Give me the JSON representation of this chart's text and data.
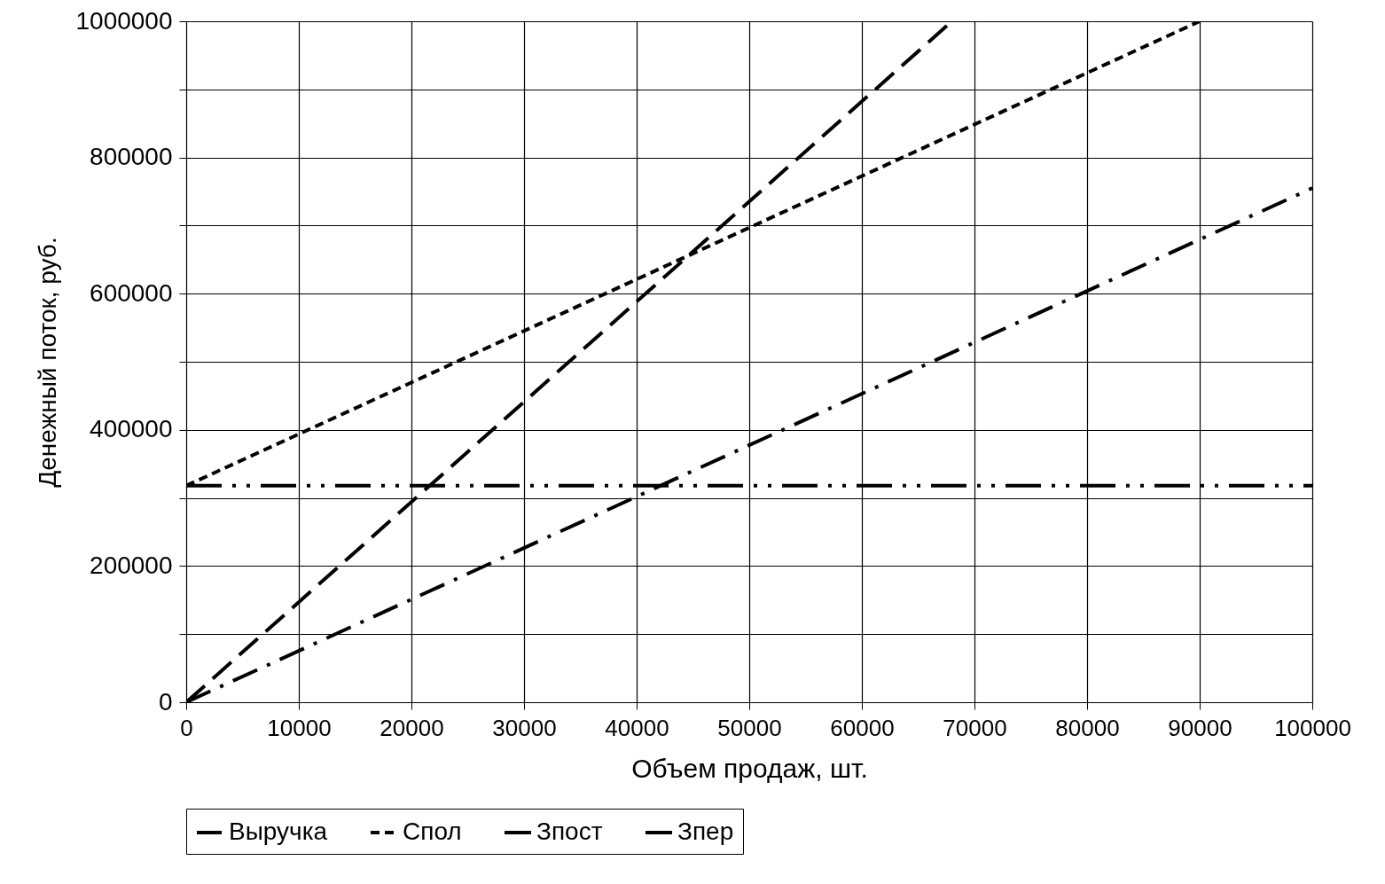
{
  "chart_data": {
    "type": "line",
    "xlabel": "Объем продаж, шт.",
    "ylabel": "Денежный поток, руб.",
    "xlim": [
      0,
      100000
    ],
    "xticks": [
      0,
      10000,
      20000,
      30000,
      40000,
      50000,
      60000,
      70000,
      80000,
      90000,
      100000
    ],
    "ylim": [
      0,
      1000000
    ],
    "yticks": [
      0,
      {
        "value": 100000,
        "label": null
      },
      200000,
      {
        "value": 300000,
        "label": null
      },
      400000,
      {
        "value": 500000,
        "label": null
      },
      600000,
      {
        "value": 700000,
        "label": null
      },
      800000,
      {
        "value": 900000,
        "label": null
      },
      1000000
    ],
    "grid": true,
    "legend": "bottom",
    "marker": "none",
    "series": [
      {
        "name": "Выручка",
        "color": "#000000",
        "line_style": "dashed",
        "x": [
          0,
          68000
        ],
        "values": [
          0,
          1000000
        ]
      },
      {
        "name": "Спол",
        "color": "#000000",
        "line_style": "dotted",
        "x": [
          0,
          90000
        ],
        "values": [
          318000,
          1000000
        ]
      },
      {
        "name": "Зпост",
        "color": "#000000",
        "line_style": "dashdotdot",
        "x": [
          0,
          100000
        ],
        "values": [
          318000,
          318000
        ]
      },
      {
        "name": "Зпер",
        "color": "#000000",
        "line_style": "dashdot",
        "x": [
          0,
          100000
        ],
        "values": [
          0,
          755000
        ]
      }
    ]
  }
}
